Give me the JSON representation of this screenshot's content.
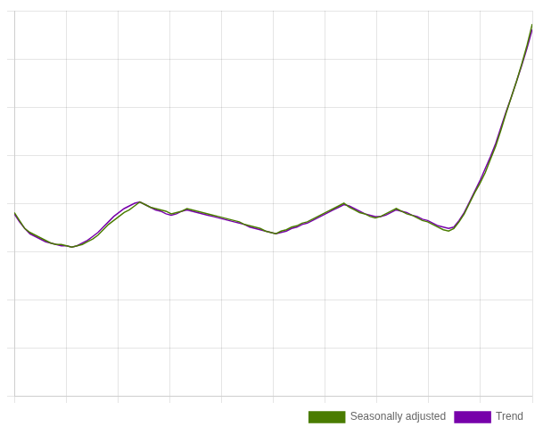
{
  "chart_data": {
    "type": "line",
    "x": [
      0,
      1,
      2,
      3,
      4,
      5,
      6,
      7,
      8,
      9,
      10,
      11,
      12,
      13,
      14,
      15,
      16,
      17,
      18,
      19,
      20,
      21,
      22,
      23,
      24,
      25,
      26,
      27,
      28,
      29,
      30,
      31,
      32,
      33,
      34,
      35,
      36,
      37,
      38,
      39,
      40,
      41,
      42,
      43,
      44,
      45,
      46,
      47,
      48,
      49,
      50,
      51,
      52,
      53,
      54,
      55,
      56,
      57,
      58,
      59,
      60,
      61,
      62,
      63,
      64,
      65,
      66,
      67,
      68,
      69,
      70,
      71,
      72,
      73,
      74,
      75,
      76,
      77,
      78,
      79,
      80,
      81,
      82,
      83,
      84,
      85,
      86,
      87,
      88,
      89,
      90,
      91,
      92,
      93,
      94,
      95,
      96,
      97,
      98,
      99
    ],
    "series": [
      {
        "name": "Seasonally adjusted",
        "color": "#4a7c00",
        "values": [
          58,
          52,
          46,
          43,
          41,
          39,
          37,
          35,
          34,
          34,
          33,
          32,
          33,
          34,
          36,
          38,
          41,
          45,
          49,
          52,
          55,
          58,
          60,
          63,
          66,
          64,
          62,
          61,
          60,
          59,
          57,
          58,
          59,
          61,
          60,
          59,
          58,
          57,
          56,
          55,
          54,
          53,
          52,
          51,
          49,
          48,
          47,
          46,
          44,
          43,
          42,
          44,
          45,
          47,
          48,
          50,
          51,
          53,
          55,
          57,
          59,
          61,
          63,
          65,
          62,
          60,
          58,
          57,
          55,
          54,
          55,
          57,
          59,
          61,
          59,
          57,
          56,
          54,
          52,
          51,
          49,
          47,
          45,
          44,
          46,
          51,
          57,
          65,
          73,
          80,
          88,
          98,
          108,
          120,
          133,
          145,
          157,
          170,
          184,
          200
        ]
      },
      {
        "name": "Trend",
        "color": "#7700aa",
        "values": [
          57,
          51,
          46,
          42,
          40,
          38,
          36,
          35,
          34,
          33,
          33,
          32,
          33,
          35,
          37,
          40,
          43,
          47,
          51,
          55,
          58,
          61,
          63,
          65,
          66,
          64,
          62,
          60,
          59,
          57,
          56,
          57,
          59,
          60,
          59,
          58,
          57,
          56,
          55,
          54,
          53,
          52,
          51,
          50,
          49,
          47,
          46,
          45,
          44,
          43,
          42,
          43,
          44,
          46,
          47,
          49,
          50,
          52,
          54,
          56,
          58,
          60,
          62,
          64,
          63,
          61,
          59,
          57,
          56,
          55,
          55,
          56,
          58,
          60,
          59,
          58,
          56,
          55,
          53,
          52,
          50,
          48,
          47,
          46,
          47,
          52,
          58,
          66,
          74,
          82,
          91,
          100,
          110,
          122,
          134,
          145,
          157,
          169,
          182,
          196
        ]
      }
    ],
    "xlim": [
      0,
      99
    ],
    "xticks": [
      0,
      9.9,
      19.8,
      29.7,
      39.6,
      49.5,
      59.4,
      69.3,
      79.2,
      89.1,
      99
    ],
    "ylim": [
      -80,
      210
    ],
    "yticks": [
      -80,
      -43.75,
      -7.5,
      28.75,
      65,
      101.25,
      137.5,
      173.75,
      210
    ],
    "grid": true,
    "tick_labels": false,
    "legend": "lower right"
  }
}
